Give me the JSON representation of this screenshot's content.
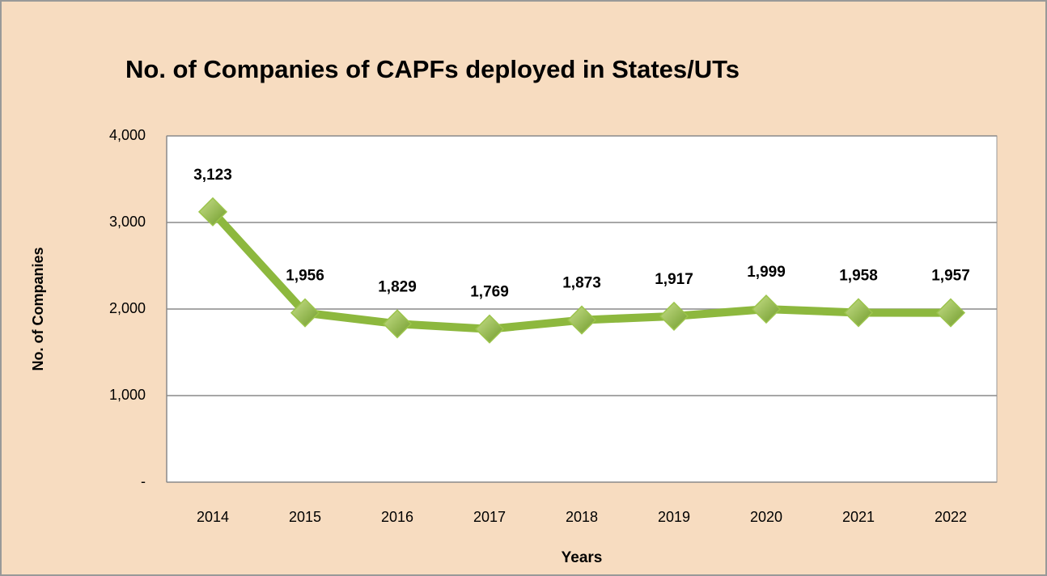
{
  "chart_data": {
    "type": "line",
    "title": "No. of Companies of  CAPFs deployed in States/UTs",
    "x_label": "Years",
    "y_label": "No. of Companies",
    "categories": [
      "2014",
      "2015",
      "2016",
      "2017",
      "2018",
      "2019",
      "2020",
      "2021",
      "2022"
    ],
    "values": [
      3123,
      1956,
      1829,
      1769,
      1873,
      1917,
      1999,
      1958,
      1957
    ],
    "value_labels": [
      "3,123",
      "1,956",
      "1,829",
      "1,769",
      "1,873",
      "1,917",
      "1,999",
      "1,958",
      "1,957"
    ],
    "color": "#8db83e",
    "marker_color": "#9cc44c",
    "ylim": [
      0,
      4000
    ],
    "yticks": [
      {
        "value": 0,
        "label": "-"
      },
      {
        "value": 1000,
        "label": "1,000"
      },
      {
        "value": 2000,
        "label": "2,000"
      },
      {
        "value": 3000,
        "label": "3,000"
      },
      {
        "value": 4000,
        "label": "4,000"
      }
    ],
    "grid": true
  }
}
